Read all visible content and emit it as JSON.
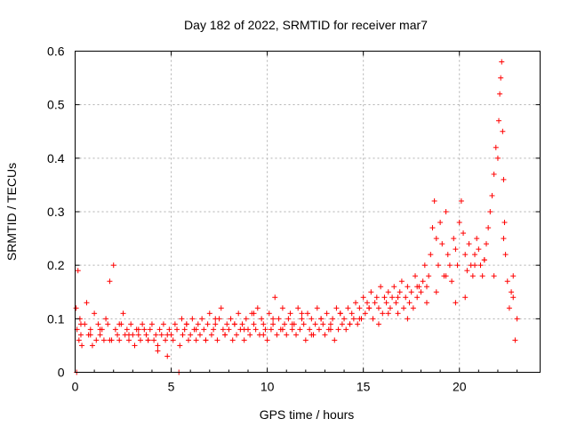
{
  "chart_data": {
    "type": "scatter",
    "title": "Day 182 of 2022, SRMTID for receiver mar7",
    "xlabel": "GPS time / hours",
    "ylabel": "SRMTID / TECUs",
    "xlim": [
      0,
      24.2
    ],
    "ylim": [
      0,
      0.6
    ],
    "xticks": [
      0,
      5,
      10,
      15,
      20
    ],
    "xtick_labels": [
      "0",
      "5",
      "10",
      "15",
      "20"
    ],
    "yticks": [
      0,
      0.1,
      0.2,
      0.3,
      0.4,
      0.5,
      0.6
    ],
    "ytick_labels": [
      "0",
      "0.1",
      "0.2",
      "0.3",
      "0.4",
      "0.5",
      "0.6"
    ],
    "grid": true,
    "marker": "+",
    "color": "#ff0000",
    "series": [
      {
        "name": "SRMTID",
        "x": [
          0.05,
          0.1,
          0.15,
          0.2,
          0.25,
          0.3,
          0.35,
          0.5,
          0.6,
          0.7,
          0.8,
          0.9,
          1.0,
          1.1,
          1.2,
          1.3,
          1.4,
          1.5,
          1.6,
          1.7,
          1.8,
          1.9,
          2.0,
          2.1,
          2.2,
          2.3,
          2.4,
          2.5,
          2.6,
          2.7,
          2.8,
          2.9,
          3.0,
          3.1,
          3.2,
          3.3,
          3.4,
          3.5,
          3.6,
          3.7,
          3.8,
          3.9,
          4.0,
          4.1,
          4.2,
          4.3,
          4.4,
          4.5,
          4.6,
          4.7,
          4.8,
          4.9,
          5.0,
          5.1,
          5.2,
          5.3,
          5.45,
          5.55,
          5.6,
          5.7,
          5.8,
          5.9,
          6.0,
          6.1,
          6.2,
          6.3,
          6.4,
          6.5,
          6.6,
          6.7,
          6.8,
          6.9,
          7.0,
          7.1,
          7.2,
          7.3,
          7.4,
          7.5,
          7.6,
          7.7,
          7.8,
          7.9,
          8.0,
          8.1,
          8.2,
          8.3,
          8.4,
          8.5,
          8.6,
          8.7,
          8.8,
          8.9,
          9.0,
          9.1,
          9.2,
          9.3,
          9.4,
          9.5,
          9.6,
          9.7,
          9.8,
          9.9,
          10.0,
          10.1,
          10.2,
          10.3,
          10.4,
          10.5,
          10.6,
          10.7,
          10.8,
          10.9,
          11.0,
          11.1,
          11.2,
          11.3,
          11.4,
          11.5,
          11.6,
          11.7,
          11.8,
          11.9,
          12.0,
          12.1,
          12.2,
          12.3,
          12.4,
          12.5,
          12.6,
          12.7,
          12.8,
          12.9,
          13.0,
          13.1,
          13.2,
          13.3,
          13.4,
          13.5,
          13.6,
          13.7,
          13.8,
          13.9,
          14.0,
          14.1,
          14.2,
          14.3,
          14.4,
          14.5,
          14.6,
          14.7,
          14.8,
          14.9,
          15.0,
          15.1,
          15.2,
          15.3,
          15.4,
          15.5,
          15.6,
          15.7,
          15.8,
          15.9,
          16.0,
          16.1,
          16.2,
          16.3,
          16.4,
          16.5,
          16.6,
          16.7,
          16.8,
          16.9,
          17.0,
          17.1,
          17.2,
          17.3,
          17.4,
          17.5,
          17.6,
          17.7,
          17.8,
          17.9,
          18.0,
          18.1,
          18.2,
          18.3,
          18.4,
          18.5,
          18.6,
          18.7,
          18.8,
          18.9,
          19.0,
          19.1,
          19.2,
          19.3,
          19.4,
          19.5,
          19.6,
          19.7,
          19.8,
          19.9,
          20.0,
          20.1,
          20.2,
          20.3,
          20.4,
          20.5,
          20.6,
          20.7,
          20.8,
          20.9,
          21.0,
          21.1,
          21.2,
          21.3,
          21.4,
          21.5,
          21.6,
          21.7,
          21.8,
          21.9,
          22.0,
          22.05,
          22.1,
          22.15,
          22.2,
          22.25,
          22.3,
          22.35,
          22.4,
          22.5,
          22.6,
          22.7,
          22.8,
          22.9,
          23.0,
          0.3,
          0.8,
          1.3,
          1.8,
          2.3,
          2.8,
          3.3,
          3.8,
          4.3,
          4.8,
          5.8,
          6.3,
          6.8,
          7.3,
          7.8,
          8.3,
          8.8,
          9.3,
          9.8,
          10.3,
          10.8,
          11.3,
          11.8,
          12.3,
          12.8,
          13.3,
          13.8,
          14.3,
          14.8,
          15.3,
          15.8,
          16.3,
          16.8,
          17.3,
          17.8,
          18.3,
          18.8,
          19.3,
          19.8,
          20.3,
          20.8,
          21.3,
          21.8,
          22.3,
          22.8,
          0.08,
          5.4
        ],
        "y": [
          0.12,
          0.08,
          0.19,
          0.06,
          0.1,
          0.07,
          0.05,
          0.09,
          0.13,
          0.07,
          0.08,
          0.05,
          0.11,
          0.06,
          0.09,
          0.07,
          0.08,
          0.06,
          0.1,
          0.09,
          0.17,
          0.06,
          0.2,
          0.08,
          0.07,
          0.06,
          0.09,
          0.11,
          0.07,
          0.08,
          0.06,
          0.09,
          0.07,
          0.05,
          0.08,
          0.07,
          0.06,
          0.09,
          0.08,
          0.07,
          0.06,
          0.08,
          0.09,
          0.06,
          0.07,
          0.05,
          0.08,
          0.07,
          0.09,
          0.06,
          0.03,
          0.08,
          0.07,
          0.06,
          0.09,
          0.08,
          0.05,
          0.1,
          0.07,
          0.08,
          0.09,
          0.06,
          0.07,
          0.1,
          0.08,
          0.06,
          0.09,
          0.07,
          0.1,
          0.08,
          0.06,
          0.09,
          0.11,
          0.07,
          0.08,
          0.09,
          0.06,
          0.1,
          0.12,
          0.08,
          0.07,
          0.09,
          0.08,
          0.1,
          0.06,
          0.09,
          0.07,
          0.11,
          0.08,
          0.09,
          0.06,
          0.1,
          0.08,
          0.07,
          0.11,
          0.09,
          0.08,
          0.12,
          0.07,
          0.1,
          0.09,
          0.08,
          0.06,
          0.11,
          0.08,
          0.09,
          0.14,
          0.07,
          0.1,
          0.08,
          0.12,
          0.09,
          0.07,
          0.1,
          0.11,
          0.08,
          0.09,
          0.07,
          0.12,
          0.08,
          0.1,
          0.09,
          0.06,
          0.11,
          0.08,
          0.1,
          0.07,
          0.09,
          0.12,
          0.08,
          0.1,
          0.09,
          0.07,
          0.11,
          0.08,
          0.09,
          0.1,
          0.06,
          0.12,
          0.08,
          0.11,
          0.09,
          0.1,
          0.08,
          0.12,
          0.09,
          0.11,
          0.1,
          0.13,
          0.09,
          0.12,
          0.1,
          0.14,
          0.11,
          0.13,
          0.12,
          0.15,
          0.1,
          0.13,
          0.14,
          0.12,
          0.16,
          0.11,
          0.14,
          0.13,
          0.15,
          0.12,
          0.14,
          0.16,
          0.13,
          0.11,
          0.15,
          0.17,
          0.12,
          0.14,
          0.16,
          0.13,
          0.15,
          0.12,
          0.18,
          0.14,
          0.16,
          0.15,
          0.17,
          0.2,
          0.16,
          0.18,
          0.22,
          0.27,
          0.32,
          0.25,
          0.2,
          0.28,
          0.24,
          0.18,
          0.3,
          0.22,
          0.2,
          0.17,
          0.25,
          0.23,
          0.2,
          0.28,
          0.32,
          0.26,
          0.22,
          0.19,
          0.24,
          0.2,
          0.18,
          0.22,
          0.25,
          0.23,
          0.2,
          0.18,
          0.21,
          0.24,
          0.27,
          0.3,
          0.33,
          0.37,
          0.42,
          0.4,
          0.47,
          0.52,
          0.55,
          0.58,
          0.45,
          0.36,
          0.28,
          0.22,
          0.17,
          0.12,
          0.15,
          0.18,
          0.06,
          0.1,
          0.09,
          0.07,
          0.08,
          0.06,
          0.09,
          0.07,
          0.08,
          0.06,
          0.04,
          0.07,
          0.09,
          0.08,
          0.06,
          0.1,
          0.07,
          0.09,
          0.08,
          0.11,
          0.07,
          0.1,
          0.08,
          0.09,
          0.11,
          0.07,
          0.1,
          0.08,
          0.11,
          0.09,
          0.1,
          0.12,
          0.09,
          0.11,
          0.14,
          0.1,
          0.16,
          0.13,
          0.15,
          0.18,
          0.13,
          0.14,
          0.2,
          0.21,
          0.18,
          0.25,
          0.14,
          0.0,
          0.0
        ]
      }
    ]
  }
}
